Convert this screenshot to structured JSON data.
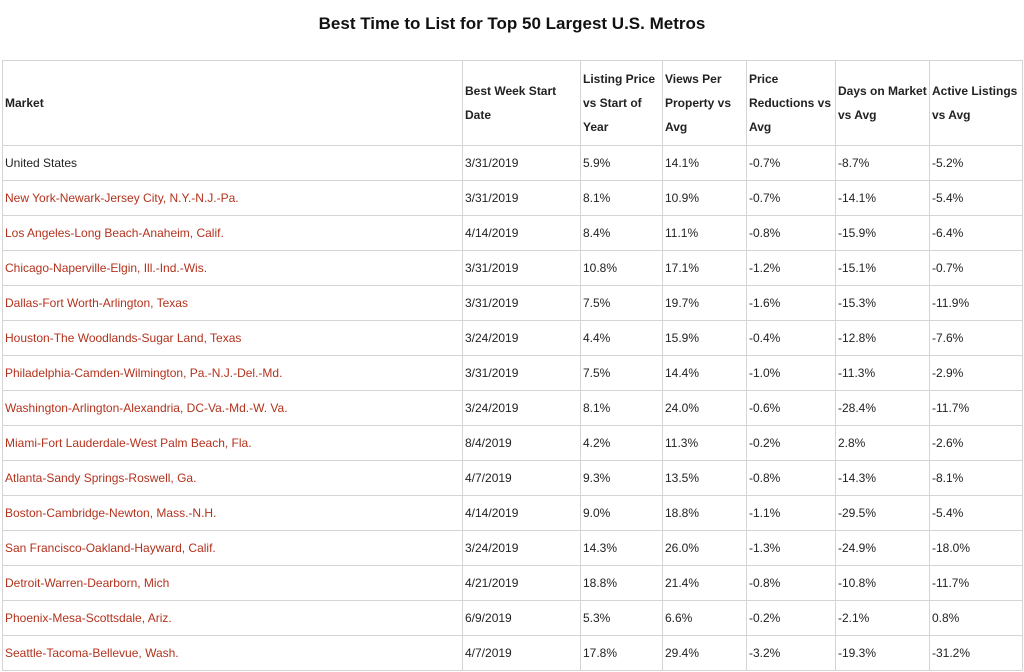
{
  "header": {
    "title": "Best Time to List for Top 50 Largest U.S. Metros"
  },
  "table": {
    "columns": [
      "Market",
      "Best Week Start Date",
      "Listing Price vs Start of Year",
      "Views Per Property vs Avg",
      "Price Reductions vs Avg",
      "Days on Market vs Avg",
      "Active Listings vs Avg"
    ],
    "rows": [
      [
        "United States",
        "3/31/2019",
        "5.9%",
        "14.1%",
        "-0.7%",
        "-8.7%",
        "-5.2%"
      ],
      [
        "New York-Newark-Jersey City, N.Y.-N.J.-Pa.",
        "3/31/2019",
        "8.1%",
        "10.9%",
        "-0.7%",
        "-14.1%",
        "-5.4%"
      ],
      [
        "Los Angeles-Long Beach-Anaheim, Calif.",
        "4/14/2019",
        "8.4%",
        "11.1%",
        "-0.8%",
        "-15.9%",
        "-6.4%"
      ],
      [
        "Chicago-Naperville-Elgin, Ill.-Ind.-Wis.",
        "3/31/2019",
        "10.8%",
        "17.1%",
        "-1.2%",
        "-15.1%",
        "-0.7%"
      ],
      [
        "Dallas-Fort Worth-Arlington, Texas",
        "3/31/2019",
        "7.5%",
        "19.7%",
        "-1.6%",
        "-15.3%",
        "-11.9%"
      ],
      [
        "Houston-The Woodlands-Sugar Land, Texas",
        "3/24/2019",
        "4.4%",
        "15.9%",
        "-0.4%",
        "-12.8%",
        "-7.6%"
      ],
      [
        "Philadelphia-Camden-Wilmington, Pa.-N.J.-Del.-Md.",
        "3/31/2019",
        "7.5%",
        "14.4%",
        "-1.0%",
        "-11.3%",
        "-2.9%"
      ],
      [
        "Washington-Arlington-Alexandria, DC-Va.-Md.-W. Va.",
        "3/24/2019",
        "8.1%",
        "24.0%",
        "-0.6%",
        "-28.4%",
        "-11.7%"
      ],
      [
        "Miami-Fort Lauderdale-West Palm Beach, Fla.",
        "8/4/2019",
        "4.2%",
        "11.3%",
        "-0.2%",
        "2.8%",
        "-2.6%"
      ],
      [
        "Atlanta-Sandy Springs-Roswell, Ga.",
        "4/7/2019",
        "9.3%",
        "13.5%",
        "-0.8%",
        "-14.3%",
        "-8.1%"
      ],
      [
        "Boston-Cambridge-Newton, Mass.-N.H.",
        "4/14/2019",
        "9.0%",
        "18.8%",
        "-1.1%",
        "-29.5%",
        "-5.4%"
      ],
      [
        "San Francisco-Oakland-Hayward, Calif.",
        "3/24/2019",
        "14.3%",
        "26.0%",
        "-1.3%",
        "-24.9%",
        "-18.0%"
      ],
      [
        "Detroit-Warren-Dearborn, Mich",
        "4/21/2019",
        "18.8%",
        "21.4%",
        "-0.8%",
        "-10.8%",
        "-11.7%"
      ],
      [
        "Phoenix-Mesa-Scottsdale, Ariz.",
        "6/9/2019",
        "5.3%",
        "6.6%",
        "-0.2%",
        "-2.1%",
        "0.8%"
      ],
      [
        "Seattle-Tacoma-Bellevue, Wash.",
        "4/7/2019",
        "17.8%",
        "29.4%",
        "-3.2%",
        "-19.3%",
        "-31.2%"
      ]
    ]
  }
}
